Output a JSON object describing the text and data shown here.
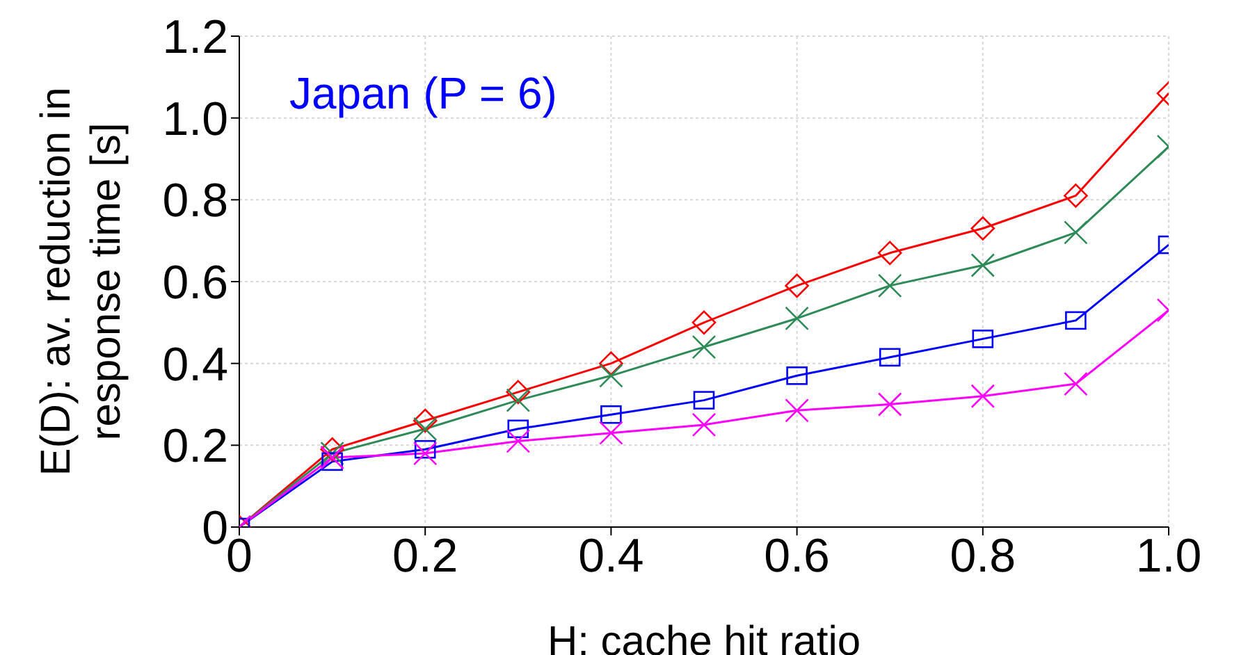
{
  "chart_data": {
    "type": "line",
    "xlabel": "H: cache hit ratio",
    "ylabel": "E(D): av. reduction in\nresponse time [s]",
    "annotations": [
      "Japan (P = 6)"
    ],
    "x": [
      0,
      0.1,
      0.2,
      0.3,
      0.4,
      0.5,
      0.6,
      0.7,
      0.8,
      0.9,
      1.0
    ],
    "xlim": [
      0,
      1
    ],
    "xticks": [
      0,
      0.2,
      0.4,
      0.6,
      0.8,
      {
        "value": 1,
        "label": "1.0"
      }
    ],
    "ylim": [
      0,
      1.2
    ],
    "yticks": [
      0,
      0.2,
      0.4,
      0.6,
      0.8,
      {
        "value": 1,
        "label": "1.0"
      },
      1.2
    ],
    "grid": true,
    "series": [
      {
        "color": "#ff0000",
        "marker": "diamond",
        "values": [
          0,
          0.19,
          0.26,
          0.33,
          0.4,
          0.5,
          0.59,
          0.67,
          0.73,
          0.81,
          1.06
        ]
      },
      {
        "color": "#2e8b57",
        "marker": "cross",
        "values": [
          0,
          0.18,
          0.24,
          0.31,
          0.37,
          0.44,
          0.51,
          0.59,
          0.64,
          0.72,
          0.93
        ]
      },
      {
        "color": "#0000ff",
        "marker": "square",
        "values": [
          0,
          0.16,
          0.19,
          0.24,
          0.275,
          0.31,
          0.37,
          0.415,
          0.46,
          0.505,
          0.69
        ]
      },
      {
        "color": "#ff00ff",
        "marker": "cross",
        "values": [
          0,
          0.17,
          0.18,
          0.21,
          0.23,
          0.25,
          0.285,
          0.3,
          0.32,
          0.35,
          0.53
        ]
      }
    ]
  }
}
